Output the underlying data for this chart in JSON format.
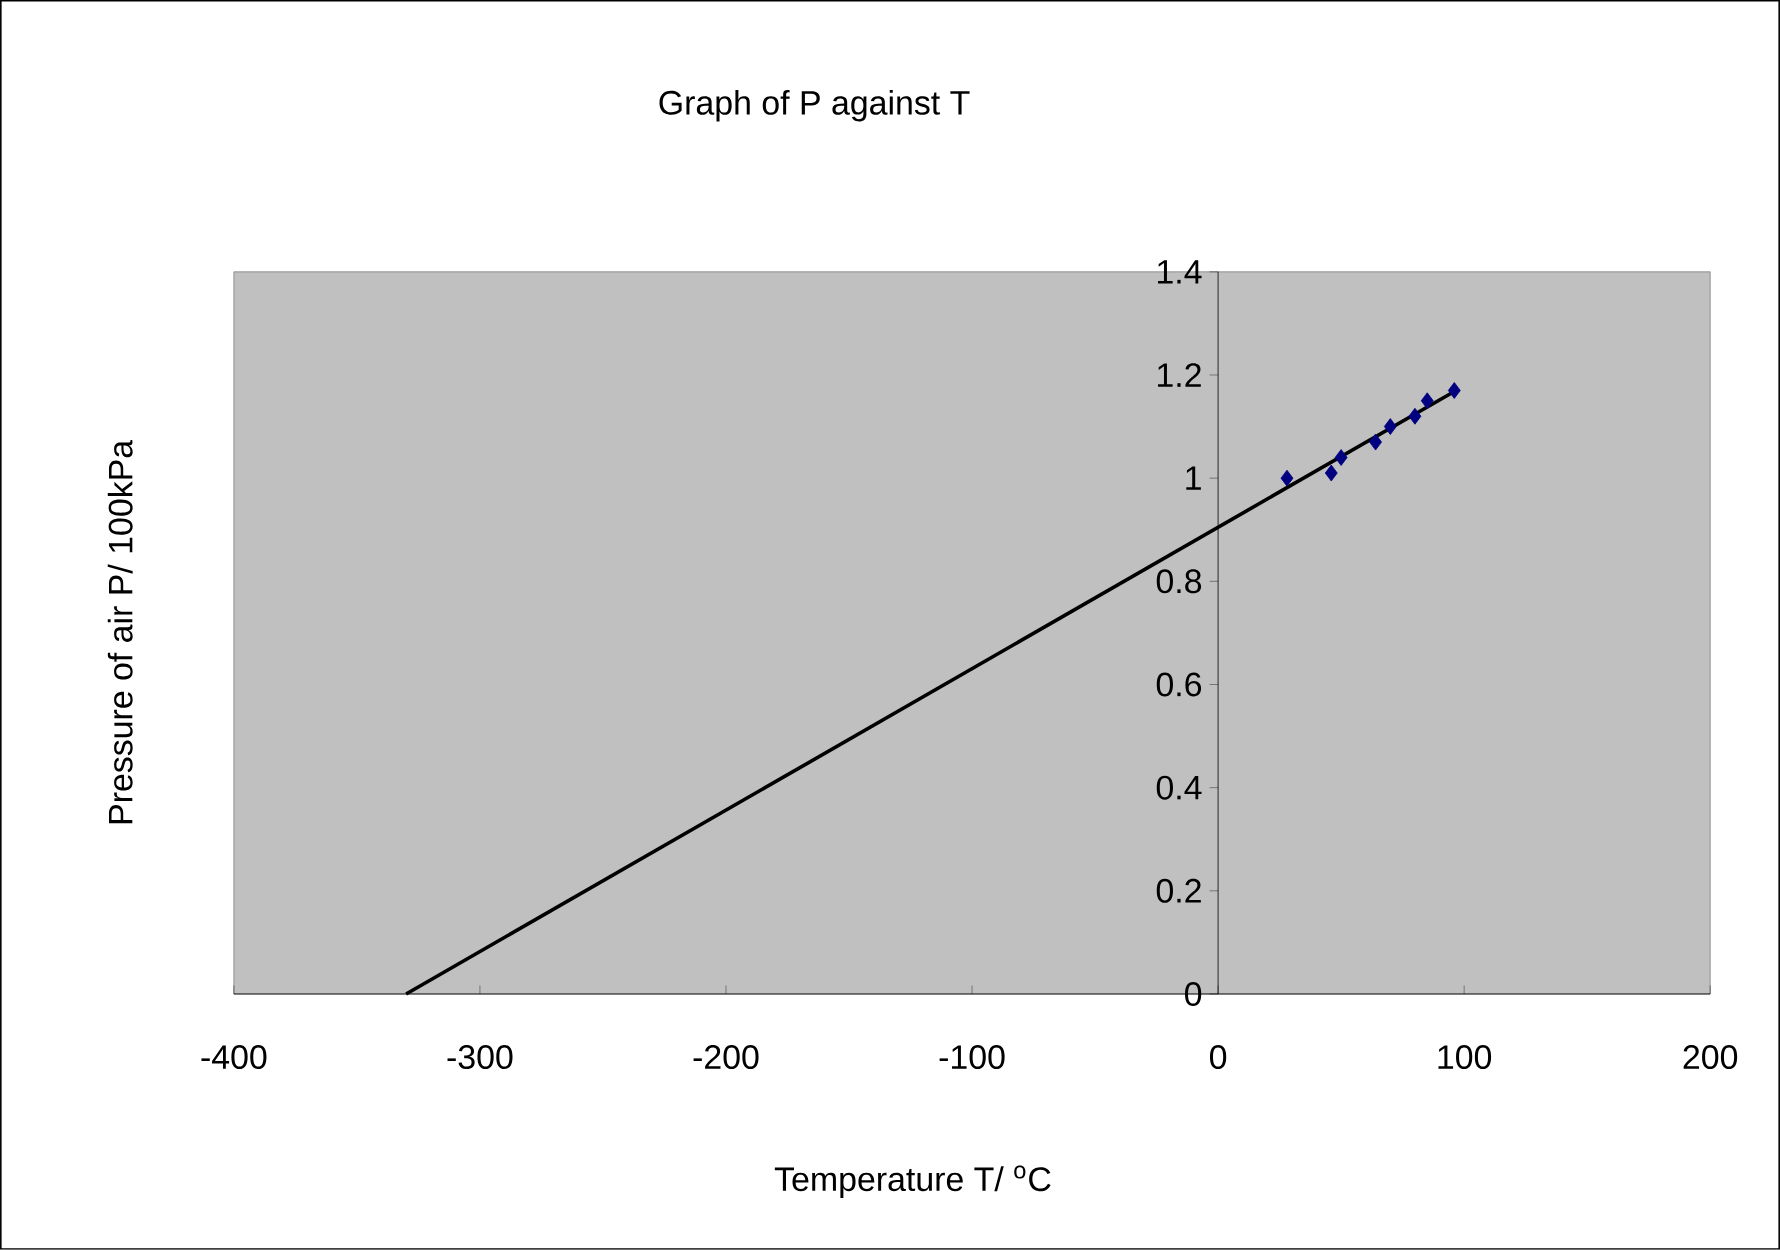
{
  "chart_data": {
    "type": "scatter",
    "title": "Graph of P against T",
    "xlabel": "Temperature T/ $^{o}$C",
    "ylabel": "Pressure of air P/ 100kPa",
    "series": [
      {
        "type": "scatter",
        "color": "#000080",
        "marker": "diamond",
        "x": [
          28,
          46,
          50,
          64,
          70,
          80,
          85,
          96
        ],
        "values": [
          1.0,
          1.01,
          1.04,
          1.07,
          1.1,
          1.12,
          1.15,
          1.17
        ]
      },
      {
        "type": "line",
        "color": "#000000",
        "marker": "none",
        "line_style": "solid",
        "x": [
          -330,
          96
        ],
        "values": [
          0,
          1.168
        ]
      }
    ],
    "xlim": [
      -400,
      200
    ],
    "ylim": [
      0,
      1.4
    ],
    "xticks": [
      -400,
      -300,
      -200,
      -100,
      0,
      100,
      200
    ],
    "yticks": [
      0,
      0.2,
      0.4,
      0.6,
      0.8,
      1,
      1.2,
      1.4
    ],
    "grid": false
  }
}
